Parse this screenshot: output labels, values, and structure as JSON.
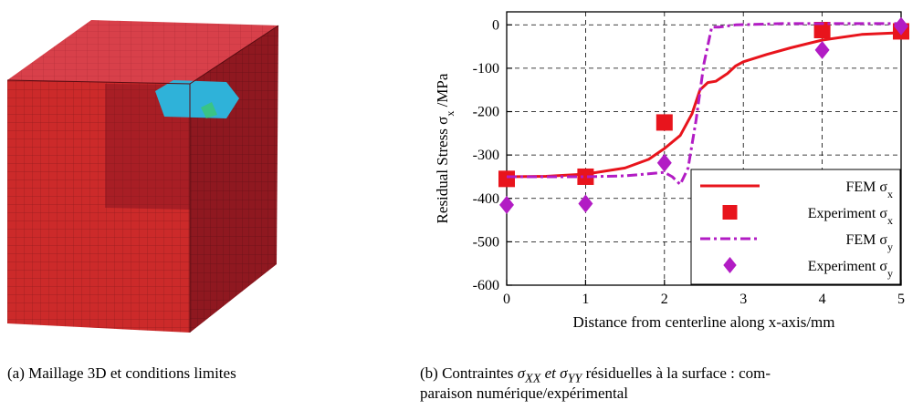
{
  "captions": {
    "a": "(a)  Maillage 3D et conditions limites",
    "b_prefix": "(b)  Contraintes ",
    "b_sym1": "σ",
    "b_sub1": "XX",
    "b_mid": " et ",
    "b_sym2": "σ",
    "b_sub2": "YY",
    "b_suffix": " résiduelles à la surface : com-",
    "b_line2": "paraison numérique/expérimental"
  },
  "colors": {
    "mesh_front": "#cc2a2a",
    "mesh_front_dark": "#a81e25",
    "mesh_top": "#d8404a",
    "mesh_right": "#8f1820",
    "mesh_patch": "#2fb2d9",
    "fem_x": "#e8141c",
    "exp_x": "#e8141c",
    "fem_y": "#b21cc4",
    "exp_y": "#b21cc4"
  },
  "chart_data": {
    "type": "line",
    "xlabel": "Distance  from centerline along x-axis/mm",
    "ylabel_prefix": "Residual Stress σ",
    "ylabel_sub": "x",
    "ylabel_suffix": " /MPa",
    "xlim": [
      0,
      5
    ],
    "ylim": [
      -600,
      30
    ],
    "xticks": [
      0,
      1,
      2,
      3,
      4,
      5
    ],
    "yticks": [
      0,
      -100,
      -200,
      -300,
      -400,
      -500,
      -600
    ],
    "grid": true,
    "legend_position": "bottom-right",
    "legend": [
      {
        "label": "FEM σ",
        "sub": "x",
        "style": "solid-line",
        "color": "#e8141c"
      },
      {
        "label": "Experiment σ",
        "sub": "x",
        "style": "square",
        "color": "#e8141c"
      },
      {
        "label": "FEM σ",
        "sub": "y",
        "style": "dashdot-line",
        "color": "#b21cc4"
      },
      {
        "label": "Experiment σ",
        "sub": "y",
        "style": "diamond",
        "color": "#b21cc4"
      }
    ],
    "series": [
      {
        "name": "FEM σx",
        "kind": "line",
        "x": [
          0,
          0.5,
          1.0,
          1.5,
          1.8,
          2.0,
          2.2,
          2.35,
          2.45,
          2.55,
          2.65,
          2.8,
          2.9,
          3.0,
          3.3,
          3.6,
          4.0,
          4.5,
          5.0
        ],
        "y": [
          -350,
          -349,
          -344,
          -330,
          -310,
          -285,
          -255,
          -205,
          -150,
          -133,
          -130,
          -112,
          -95,
          -85,
          -68,
          -53,
          -35,
          -22,
          -18
        ]
      },
      {
        "name": "Experiment σx",
        "kind": "square",
        "x": [
          0,
          1,
          2,
          4,
          5
        ],
        "y": [
          -355,
          -350,
          -225,
          -12,
          -15
        ]
      },
      {
        "name": "FEM σy",
        "kind": "dashdot",
        "x": [
          0,
          1.0,
          1.5,
          2.0,
          2.1,
          2.2,
          2.3,
          2.4,
          2.5,
          2.6,
          2.7,
          2.9,
          3.5,
          4.0,
          5.0
        ],
        "y": [
          -350,
          -350,
          -348,
          -340,
          -350,
          -368,
          -330,
          -220,
          -90,
          -5,
          -5,
          0,
          3,
          3,
          3
        ]
      },
      {
        "name": "Experiment σy",
        "kind": "diamond",
        "x": [
          0,
          1,
          2,
          4,
          5
        ],
        "y": [
          -415,
          -412,
          -318,
          -58,
          -3
        ]
      }
    ]
  }
}
